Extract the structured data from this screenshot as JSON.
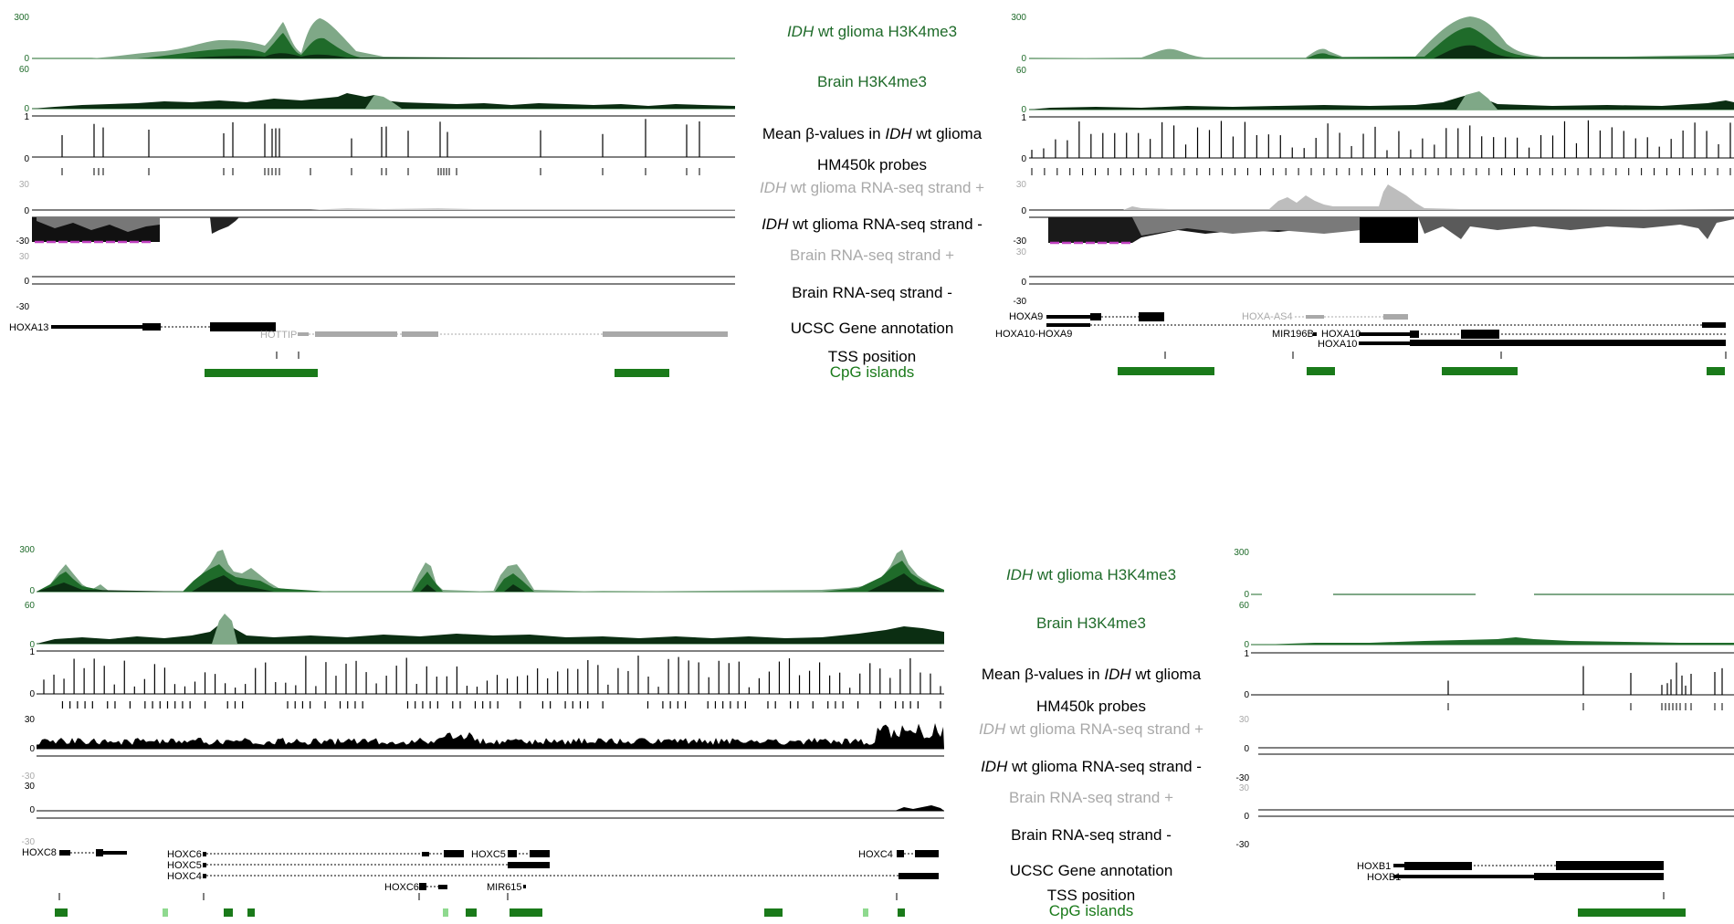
{
  "colors": {
    "dark_green": "#0b2e12",
    "mid_green": "#1f6b2a",
    "light_green": "#7fa887",
    "cpg_green": "#1a7a1a",
    "cpg_light": "#8fd98f",
    "grey_label": "#a9a9a9",
    "black": "#000000",
    "magenta": "#c040c0"
  },
  "panels": [
    {
      "id": "A",
      "labels": [
        {
          "pre_italic": "IDH",
          "rest": " wt glioma H3K4me3",
          "color": "green"
        },
        {
          "pre_italic": "",
          "rest": "Brain H3K4me3",
          "color": "green"
        },
        {
          "plain_before": "Mean β-values in ",
          "pre_italic": "IDH",
          "rest": " wt glioma",
          "color": "black"
        },
        {
          "pre_italic": "",
          "rest": "HM450k probes",
          "color": "black"
        },
        {
          "pre_italic": "IDH",
          "rest": " wt glioma RNA-seq strand +",
          "color": "grey"
        },
        {
          "pre_italic": "IDH",
          "rest": " wt glioma RNA-seq strand -",
          "color": "black"
        },
        {
          "pre_italic": "",
          "rest": "Brain RNA-seq strand +",
          "color": "grey"
        },
        {
          "pre_italic": "",
          "rest": "Brain RNA-seq strand -",
          "color": "black"
        },
        {
          "pre_italic": "",
          "rest": "UCSC Gene annotation",
          "color": "black"
        },
        {
          "pre_italic": "",
          "rest": "TSS position",
          "color": "black"
        },
        {
          "pre_italic": "",
          "rest": "CpG islands",
          "color": "green"
        }
      ],
      "ticks": [
        "300",
        "0",
        "60",
        "0",
        "1",
        "0",
        "30",
        "0",
        "-30",
        "30",
        "0",
        "-30"
      ],
      "genes": [
        "HOXA13",
        "HOTTIP"
      ]
    },
    {
      "id": "B",
      "ticks": [
        "300",
        "0",
        "60",
        "0",
        "1",
        "0",
        "30",
        "0",
        "-30",
        "30",
        "0",
        "-30"
      ],
      "genes": [
        "HOXA9",
        "HOXA10-HOXA9",
        "HOXA-AS4",
        "MIR196B",
        "HOXA10",
        "HOXA10"
      ]
    },
    {
      "id": "C",
      "labels": [
        {
          "pre_italic": "IDH",
          "rest": " wt glioma H3K4me3",
          "color": "green"
        },
        {
          "pre_italic": "",
          "rest": "Brain H3K4me3",
          "color": "green"
        },
        {
          "plain_before": "Mean β-values in ",
          "pre_italic": "IDH",
          "rest": " wt glioma",
          "color": "black"
        },
        {
          "pre_italic": "",
          "rest": "HM450k probes",
          "color": "black"
        },
        {
          "pre_italic": "IDH",
          "rest": " wt glioma RNA-seq strand +",
          "color": "grey"
        },
        {
          "pre_italic": "IDH",
          "rest": " wt glioma RNA-seq strand -",
          "color": "black"
        },
        {
          "pre_italic": "",
          "rest": "Brain RNA-seq strand +",
          "color": "grey"
        },
        {
          "pre_italic": "",
          "rest": "Brain RNA-seq strand -",
          "color": "black"
        },
        {
          "pre_italic": "",
          "rest": "UCSC Gene annotation",
          "color": "black"
        },
        {
          "pre_italic": "",
          "rest": "TSS position",
          "color": "black"
        },
        {
          "pre_italic": "",
          "rest": "CpG islands",
          "color": "green"
        }
      ],
      "ticks": [
        "300",
        "0",
        "60",
        "0",
        "1",
        "0",
        "30",
        "0",
        "-30",
        "30",
        "0",
        "-30"
      ],
      "genes": [
        "HOXC8",
        "HOXC6",
        "HOXC5",
        "HOXC4",
        "HOXC5",
        "HOXC4",
        "HOXC6",
        "MIR615"
      ]
    },
    {
      "id": "D",
      "ticks": [
        "300",
        "0",
        "60",
        "0",
        "1",
        "0",
        "30",
        "0",
        "-30",
        "30",
        "0",
        "-30"
      ],
      "genes": [
        "HOXB1",
        "HOXB1"
      ]
    }
  ]
}
